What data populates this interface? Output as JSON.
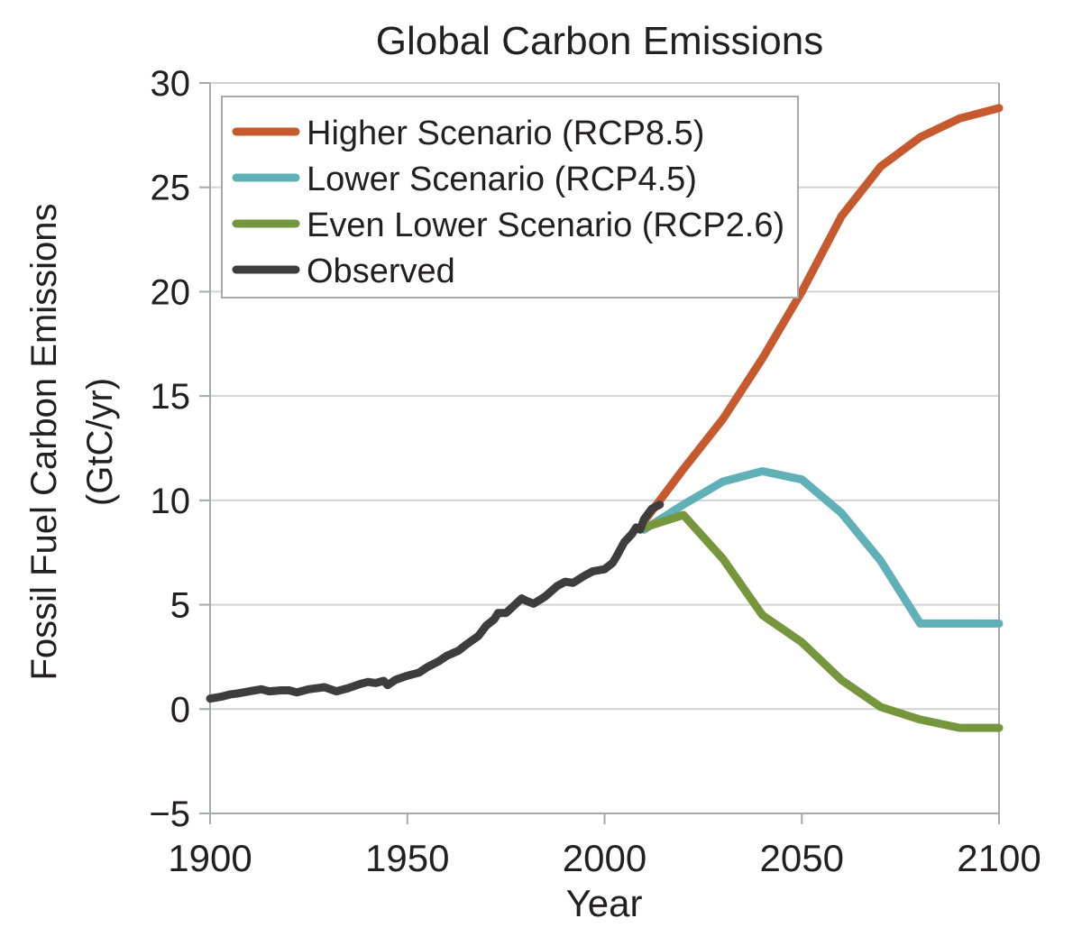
{
  "chart_data": {
    "type": "line",
    "title": "Global Carbon Emissions",
    "xlabel": "Year",
    "ylabel": [
      "Fossil Fuel Carbon Emissions",
      "(GtC/yr)"
    ],
    "xlim": [
      1900,
      2100
    ],
    "ylim": [
      -5,
      30
    ],
    "xticks": [
      1900,
      1950,
      2000,
      2050,
      2100
    ],
    "yticks": [
      -5,
      0,
      5,
      10,
      15,
      20,
      25,
      30
    ],
    "ytick_labels": [
      "−5",
      "0",
      "5",
      "10",
      "15",
      "20",
      "25",
      "30"
    ],
    "grid": "horizontal",
    "legend_position": "top-left",
    "series": [
      {
        "name": "Higher Scenario (RCP8.5)",
        "color": "#c65a2e",
        "x": [
          2010,
          2020,
          2030,
          2040,
          2050,
          2060,
          2070,
          2080,
          2090,
          2100
        ],
        "y": [
          9.0,
          11.5,
          13.9,
          16.8,
          20.0,
          23.6,
          26.0,
          27.4,
          28.3,
          28.8
        ]
      },
      {
        "name": "Lower Scenario (RCP4.5)",
        "color": "#5fb0b7",
        "x": [
          2010,
          2020,
          2030,
          2040,
          2050,
          2060,
          2070,
          2080,
          2090,
          2100
        ],
        "y": [
          8.6,
          9.8,
          10.9,
          11.4,
          11.0,
          9.4,
          7.1,
          4.1,
          4.1,
          4.1
        ]
      },
      {
        "name": "Even Lower Scenario (RCP2.6)",
        "color": "#76963e",
        "x": [
          2010,
          2020,
          2030,
          2040,
          2050,
          2060,
          2070,
          2080,
          2090,
          2100
        ],
        "y": [
          8.7,
          9.3,
          7.2,
          4.5,
          3.2,
          1.4,
          0.1,
          -0.5,
          -0.9,
          -0.9
        ]
      },
      {
        "name": "Observed",
        "color": "#3d3d3d",
        "x": [
          1900,
          1903,
          1905,
          1907,
          1910,
          1913,
          1915,
          1918,
          1920,
          1922,
          1925,
          1929,
          1932,
          1935,
          1938,
          1940,
          1942,
          1944,
          1945,
          1947,
          1950,
          1953,
          1955,
          1958,
          1960,
          1963,
          1965,
          1968,
          1970,
          1972,
          1973,
          1975,
          1977,
          1979,
          1980,
          1982,
          1985,
          1988,
          1990,
          1992,
          1995,
          1997,
          2000,
          2002,
          2003,
          2005,
          2007,
          2008,
          2009,
          2010,
          2012,
          2014
        ],
        "y": [
          0.5,
          0.6,
          0.7,
          0.75,
          0.85,
          0.95,
          0.85,
          0.9,
          0.9,
          0.8,
          0.95,
          1.05,
          0.85,
          1.0,
          1.2,
          1.3,
          1.25,
          1.35,
          1.15,
          1.4,
          1.6,
          1.75,
          2.0,
          2.3,
          2.55,
          2.8,
          3.1,
          3.5,
          4.0,
          4.3,
          4.6,
          4.6,
          4.95,
          5.3,
          5.2,
          5.05,
          5.4,
          5.9,
          6.1,
          6.05,
          6.4,
          6.6,
          6.7,
          7.0,
          7.3,
          8.0,
          8.4,
          8.7,
          8.6,
          9.1,
          9.6,
          9.8
        ]
      }
    ]
  }
}
